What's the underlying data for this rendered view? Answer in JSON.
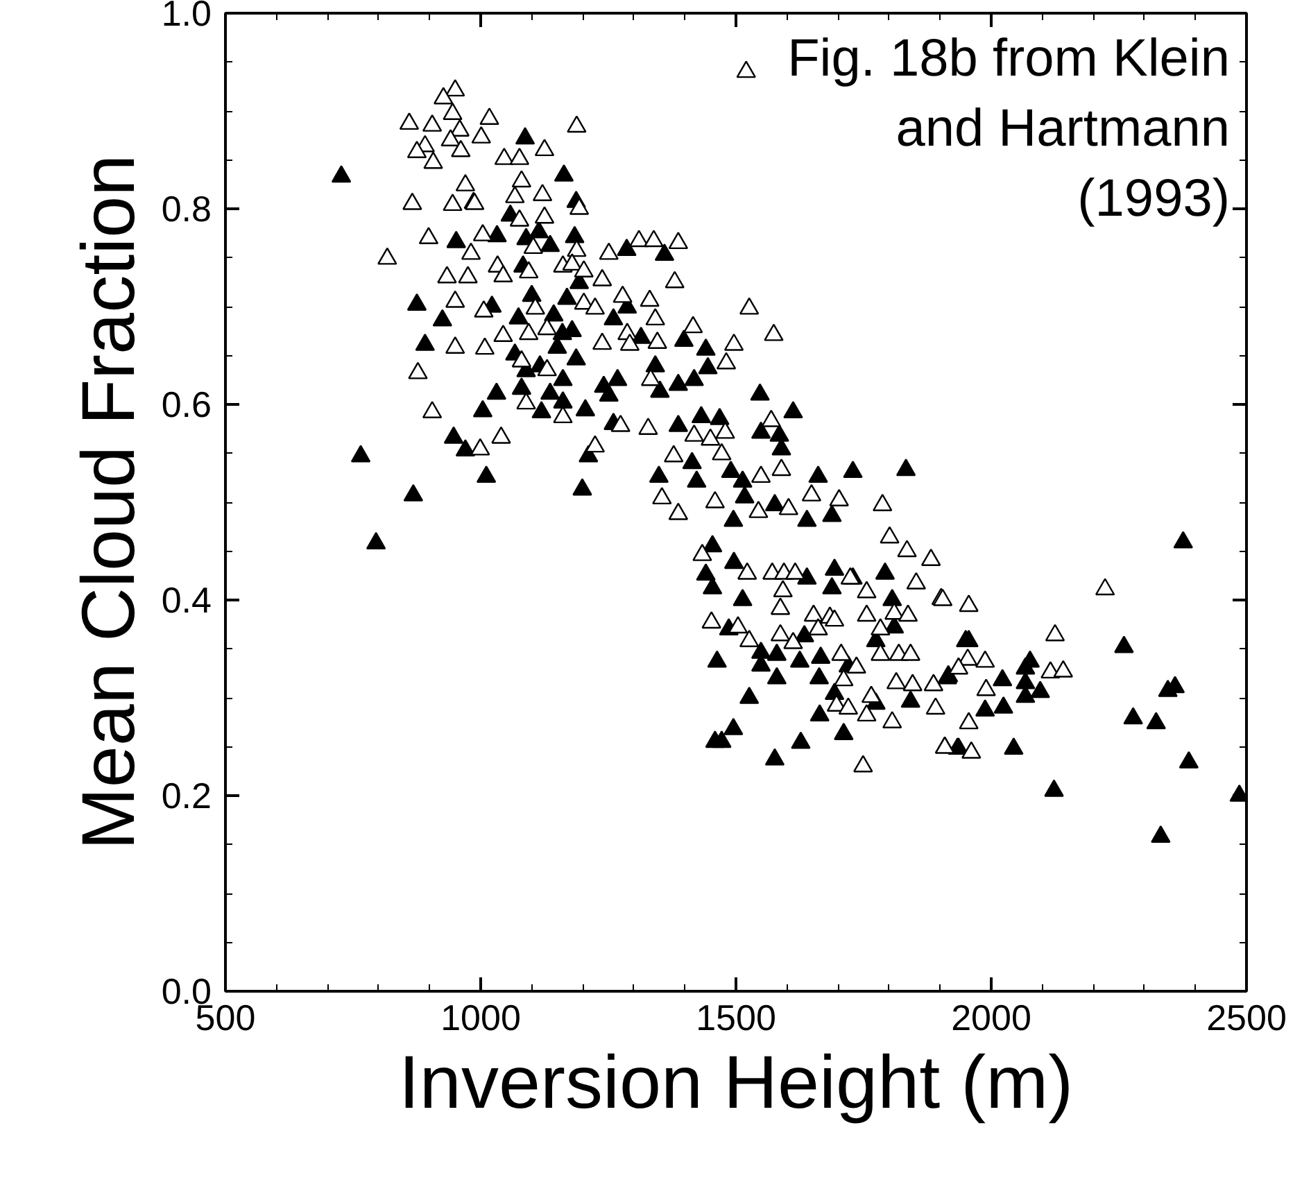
{
  "chart_data": {
    "type": "scatter",
    "xlabel": "Inversion Height (m)",
    "ylabel": "Mean Cloud Fraction",
    "annotations": [
      "Fig. 18b from Klein\nand Hartmann\n(1993)"
    ],
    "xlim": [
      500,
      2500
    ],
    "xticks": [
      500,
      1000,
      1500,
      2000,
      2500
    ],
    "ylim": [
      0,
      1.0
    ],
    "yticks": [
      {
        "value": 0,
        "label": "0.0"
      },
      {
        "value": 0.2,
        "label": "0.2"
      },
      {
        "value": 0.4,
        "label": "0.4"
      },
      {
        "value": 0.6,
        "label": "0.6"
      },
      {
        "value": 0.8,
        "label": "0.8"
      },
      {
        "value": 1.0,
        "label": "1.0"
      }
    ],
    "grid": false,
    "marker": "triangle",
    "series": [
      {
        "color": "#000000",
        "x": [
          727,
          1087,
          1163,
          986,
          1187,
          1058,
          952,
          1032,
          1089,
          1114,
          1136,
          1184,
          1286,
          1083,
          1193,
          1100,
          1169,
          875,
          1022,
          925,
          1074,
          1143,
          1160,
          1179,
          1260,
          891,
          1067,
          1150,
          1187,
          1089,
          1116,
          1161,
          1241,
          1268,
          1031,
          1080,
          1136,
          1161,
          1004,
          1119,
          1205,
          1251,
          947,
          970,
          765,
          1011,
          868,
          1199,
          1211,
          1260,
          795,
          1360,
          1287,
          1314,
          1398,
          1441,
          1445,
          1418,
          1387,
          1342,
          1351,
          1547,
          1612,
          1387,
          1432,
          1468,
          1549,
          1585,
          1589,
          1414,
          1490,
          1513,
          1423,
          1517,
          1576,
          1661,
          1729,
          1833,
          1349,
          1688,
          1639,
          1495,
          1454,
          1496,
          1441,
          1454,
          1513,
          1639,
          1693,
          1729,
          1688,
          1792,
          1806,
          1774,
          1810,
          1486,
          1634,
          1549,
          1580,
          1666,
          1463,
          1549,
          1625,
          1580,
          1663,
          1720,
          1693,
          1774,
          1842,
          1526,
          1664,
          1711,
          1495,
          1459,
          1472,
          1627,
          1576,
          1914,
          1934,
          1950,
          2376,
          1956,
          2260,
          1916,
          2076,
          2067,
          2022,
          2067,
          2096,
          2067,
          1988,
          2024,
          2346,
          2360,
          2278,
          2323,
          2044,
          1936,
          2387,
          2123,
          2332,
          2486
        ],
        "values": [
          0.833,
          0.872,
          0.834,
          0.806,
          0.807,
          0.793,
          0.766,
          0.772,
          0.769,
          0.776,
          0.762,
          0.771,
          0.758,
          0.741,
          0.724,
          0.711,
          0.708,
          0.702,
          0.7,
          0.686,
          0.688,
          0.691,
          0.672,
          0.675,
          0.687,
          0.661,
          0.651,
          0.658,
          0.646,
          0.634,
          0.639,
          0.625,
          0.618,
          0.625,
          0.611,
          0.616,
          0.611,
          0.602,
          0.593,
          0.592,
          0.594,
          0.609,
          0.566,
          0.553,
          0.547,
          0.526,
          0.507,
          0.513,
          0.547,
          0.58,
          0.458,
          0.753,
          0.699,
          0.668,
          0.665,
          0.656,
          0.637,
          0.625,
          0.62,
          0.639,
          0.613,
          0.61,
          0.592,
          0.578,
          0.587,
          0.585,
          0.571,
          0.568,
          0.554,
          0.54,
          0.531,
          0.521,
          0.521,
          0.505,
          0.497,
          0.526,
          0.531,
          0.533,
          0.526,
          0.486,
          0.481,
          0.481,
          0.455,
          0.438,
          0.426,
          0.412,
          0.4,
          0.422,
          0.431,
          0.422,
          0.412,
          0.427,
          0.4,
          0.358,
          0.372,
          0.37,
          0.363,
          0.346,
          0.344,
          0.341,
          0.337,
          0.333,
          0.337,
          0.32,
          0.32,
          0.332,
          0.304,
          0.294,
          0.296,
          0.3,
          0.282,
          0.263,
          0.268,
          0.255,
          0.255,
          0.254,
          0.237,
          0.32,
          0.248,
          0.358,
          0.459,
          0.358,
          0.352,
          0.322,
          0.337,
          0.33,
          0.318,
          0.315,
          0.306,
          0.301,
          0.287,
          0.29,
          0.307,
          0.311,
          0.279,
          0.274,
          0.248,
          0.248,
          0.234,
          0.205,
          0.158,
          0.2
        ]
      },
      {
        "color": "#ffffff",
        "x": [
          950,
          927,
          860,
          905,
          945,
          959,
          1017,
          1001,
          941,
          961,
          891,
          875,
          907,
          1046,
          1076,
          1125,
          1188,
          970,
          1080,
          1121,
          1067,
          1193,
          866,
          945,
          988,
          1076,
          1125,
          898,
          1004,
          981,
          817,
          1103,
          1188,
          1251,
          1033,
          1044,
          934,
          975,
          1094,
          1161,
          1179,
          1202,
          1238,
          1278,
          950,
          1006,
          1107,
          1202,
          1224,
          1044,
          1094,
          1130,
          1287,
          950,
          1008,
          1238,
          1080,
          1130,
          877,
          1089,
          1161,
          905,
          1040,
          999,
          1224,
          1274,
          1520,
          1310,
          1339,
          1387,
          1380,
          1331,
          1526,
          1416,
          1574,
          1496,
          1481,
          1342,
          1346,
          1292,
          1333,
          1569,
          1418,
          1479,
          1378,
          1472,
          1450,
          1328,
          1648,
          1702,
          1787,
          1549,
          1589,
          1355,
          1387,
          1459,
          1544,
          1603,
          1434,
          1522,
          1571,
          1594,
          1616,
          1592,
          1452,
          1504,
          1526,
          1587,
          1587,
          1612,
          1652,
          1684,
          1661,
          1693,
          1756,
          1783,
          1810,
          1837,
          1801,
          1835,
          1882,
          1853,
          1902,
          1756,
          1724,
          1706,
          1736,
          1783,
          1819,
          1842,
          1711,
          1765,
          1814,
          1846,
          1697,
          1720,
          1756,
          1806,
          1887,
          1891,
          1909,
          1749,
          1905,
          1956,
          2223,
          2125,
          1954,
          1988,
          1936,
          1990,
          2116,
          2141,
          1956,
          1909,
          1961
        ],
        "values": [
          0.921,
          0.913,
          0.887,
          0.885,
          0.897,
          0.88,
          0.892,
          0.873,
          0.87,
          0.859,
          0.864,
          0.858,
          0.847,
          0.851,
          0.851,
          0.86,
          0.884,
          0.824,
          0.828,
          0.814,
          0.812,
          0.8,
          0.805,
          0.804,
          0.805,
          0.788,
          0.791,
          0.77,
          0.773,
          0.754,
          0.749,
          0.76,
          0.757,
          0.754,
          0.741,
          0.731,
          0.73,
          0.73,
          0.735,
          0.741,
          0.743,
          0.736,
          0.727,
          0.71,
          0.705,
          0.695,
          0.698,
          0.703,
          0.698,
          0.67,
          0.672,
          0.677,
          0.672,
          0.658,
          0.657,
          0.662,
          0.644,
          0.635,
          0.632,
          0.601,
          0.587,
          0.592,
          0.566,
          0.554,
          0.557,
          0.578,
          0.94,
          0.767,
          0.767,
          0.765,
          0.725,
          0.706,
          0.698,
          0.679,
          0.671,
          0.661,
          0.642,
          0.687,
          0.663,
          0.661,
          0.625,
          0.583,
          0.568,
          0.571,
          0.547,
          0.549,
          0.564,
          0.575,
          0.507,
          0.502,
          0.497,
          0.526,
          0.533,
          0.504,
          0.488,
          0.5,
          0.49,
          0.493,
          0.446,
          0.427,
          0.427,
          0.427,
          0.427,
          0.409,
          0.377,
          0.372,
          0.358,
          0.391,
          0.364,
          0.356,
          0.384,
          0.382,
          0.37,
          0.379,
          0.384,
          0.37,
          0.386,
          0.384,
          0.464,
          0.45,
          0.441,
          0.417,
          0.401,
          0.408,
          0.422,
          0.344,
          0.331,
          0.344,
          0.344,
          0.344,
          0.318,
          0.301,
          0.315,
          0.313,
          0.292,
          0.289,
          0.282,
          0.275,
          0.313,
          0.289,
          0.249,
          0.23,
          0.4,
          0.394,
          0.411,
          0.364,
          0.339,
          0.337,
          0.33,
          0.308,
          0.326,
          0.327,
          0.274,
          0.249,
          0.244
        ]
      }
    ]
  }
}
